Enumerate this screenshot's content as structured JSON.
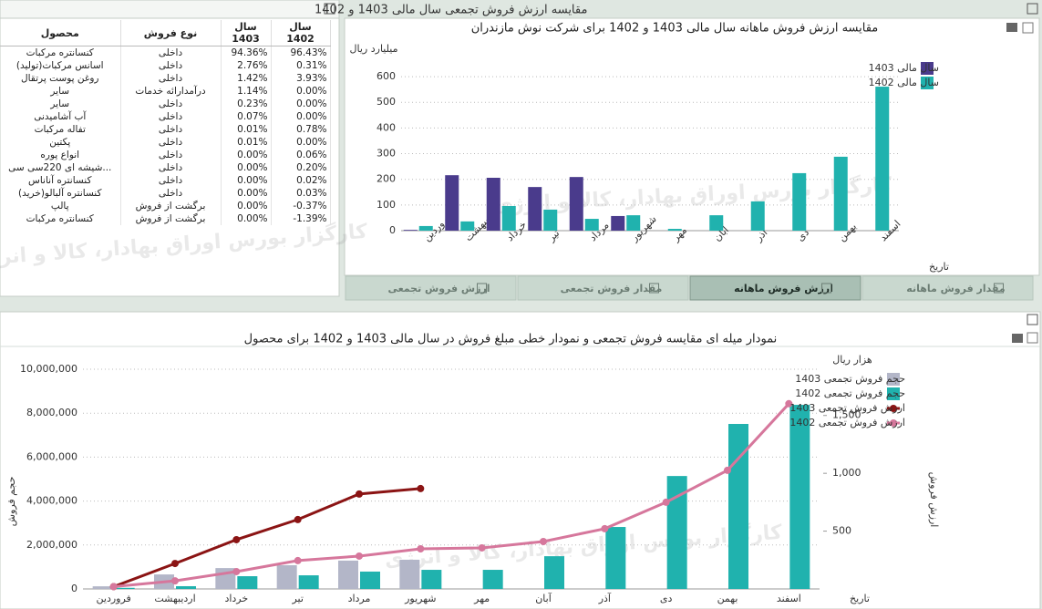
{
  "watermark": "کارگزار بورس اوراق بهادار، کالا و انرژی",
  "table": {
    "title": "مقایسه ارزش فروش تجمعی سال مالی 1403 و 1402",
    "columns": [
      "محصول",
      "نوع فروش",
      "سال 1403",
      "سال 1402"
    ],
    "rows": [
      [
        "کنسانتره مرکبات",
        "داخلی",
        "94.36%",
        "96.43%"
      ],
      [
        "اسانس مرکبات(تولید)",
        "داخلی",
        "2.76%",
        "0.31%"
      ],
      [
        "روغن پوست پرتقال",
        "داخلی",
        "1.42%",
        "3.93%"
      ],
      [
        "سایر",
        "درآمدارائه خدمات",
        "1.14%",
        "0.00%"
      ],
      [
        "سایر",
        "داخلی",
        "0.23%",
        "0.00%"
      ],
      [
        "آب آشامیدنی",
        "داخلی",
        "0.07%",
        "0.00%"
      ],
      [
        "تفاله مرکبات",
        "داخلی",
        "0.01%",
        "0.78%"
      ],
      [
        "پکتین",
        "داخلی",
        "0.01%",
        "0.00%"
      ],
      [
        "انواع پوره",
        "داخلی",
        "0.00%",
        "0.06%"
      ],
      [
        "...شیشه ای 220سی سی",
        "داخلی",
        "0.00%",
        "0.20%"
      ],
      [
        "کنسانتره آناناس",
        "داخلی",
        "0.00%",
        "0.02%"
      ],
      [
        "کنسانتره آلبالو(خرید)",
        "داخلی",
        "0.00%",
        "0.03%"
      ],
      [
        "پالپ",
        "برگشت از فروش",
        "0.00%",
        "-0.37%"
      ],
      [
        "کنسانتره مرکبات",
        "برگشت از فروش",
        "0.00%",
        "-1.39%"
      ]
    ]
  },
  "tabs": [
    "ارزش فروش تجمعی",
    "مقدار فروش تجمعی",
    "ارزش فروش ماهانه",
    "مقدار فروش ماهانه"
  ],
  "active_tab": 2,
  "chart_data": [
    {
      "type": "bar",
      "title": "مقایسه ارزش فروش ماهانه سال مالی 1403 و 1402 برای شرکت نوش مازندران",
      "y_label": "میلیارد ریال",
      "x_label": "تاریخ",
      "categories": [
        "فروردین",
        "اردیبهشت",
        "خرداد",
        "تیر",
        "مرداد",
        "شهریور",
        "مهر",
        "آبان",
        "آذر",
        "دی",
        "بهمن",
        "اسفند"
      ],
      "series": [
        {
          "name": "سال مالی 1403",
          "color": "#4a3b8c",
          "values": [
            3,
            216,
            206,
            170,
            209,
            57,
            null,
            null,
            null,
            null,
            null,
            null
          ]
        },
        {
          "name": "سال مالی 1402",
          "color": "#20b2ae",
          "values": [
            18,
            36,
            96,
            82,
            46,
            60,
            7,
            60,
            114,
            224,
            288,
            561
          ]
        }
      ],
      "ylim": [
        0,
        650
      ],
      "yticks": [
        0,
        100,
        200,
        300,
        400,
        500,
        600
      ],
      "grid": true,
      "legend": "right"
    },
    {
      "type": "combo",
      "title": "نمودار میله ای مقایسه فروش تجمعی و نمودار خطی مبلغ فروش در سال مالی 1403 و 1402 برای محصول",
      "y_label": "حجم فروش",
      "y2_label": "ارزش فروش",
      "y2_unit": "هزار ریال",
      "x_label": "تاریخ",
      "categories": [
        "فروردین",
        "اردیبهشت",
        "خرداد",
        "تیر",
        "مرداد",
        "شهریور",
        "مهر",
        "آبان",
        "آذر",
        "دی",
        "بهمن",
        "اسفند"
      ],
      "series": [
        {
          "name": "حجم فروش تجمعی 1403",
          "type": "bar",
          "color": "#b3b6c8",
          "values": [
            120000,
            660000,
            950000,
            1080000,
            1290000,
            1330000,
            null,
            null,
            null,
            null,
            null,
            null
          ]
        },
        {
          "name": "حجم فروش تجمعی 1402",
          "type": "bar",
          "color": "#20b2ae",
          "values": [
            50000,
            125000,
            580000,
            620000,
            790000,
            870000,
            870000,
            1490000,
            2820000,
            5140000,
            7510000,
            8380000
          ]
        },
        {
          "name": "ارزش فروش تجمعی 1403",
          "type": "line",
          "axis": "y2",
          "color": "#8b1414",
          "values": [
            20,
            220,
            426,
            600,
            821,
            868,
            null,
            null,
            null,
            null,
            null,
            null
          ]
        },
        {
          "name": "ارزش فروش تجمعی 1402",
          "type": "line",
          "axis": "y2",
          "color": "#d6779c",
          "values": [
            20,
            70,
            150,
            245,
            284,
            347,
            355,
            410,
            521,
            750,
            1026,
            1602
          ]
        }
      ],
      "ylim": [
        0,
        10000000
      ],
      "yticks": [
        0,
        {
          "value": 2000000,
          "label": "2,000,000"
        },
        {
          "value": 4000000,
          "label": "4,000,000"
        },
        {
          "value": 6000000,
          "label": "6,000,000"
        },
        {
          "value": 8000000,
          "label": "8,000,000"
        },
        {
          "value": 10000000,
          "label": "10,000,000"
        }
      ],
      "y2lim": [
        0,
        1900
      ],
      "y2ticks": [
        500,
        {
          "value": 1000,
          "label": "1,000"
        },
        {
          "value": 1500,
          "label": "1,500"
        }
      ],
      "grid": true,
      "legend": "right"
    }
  ]
}
